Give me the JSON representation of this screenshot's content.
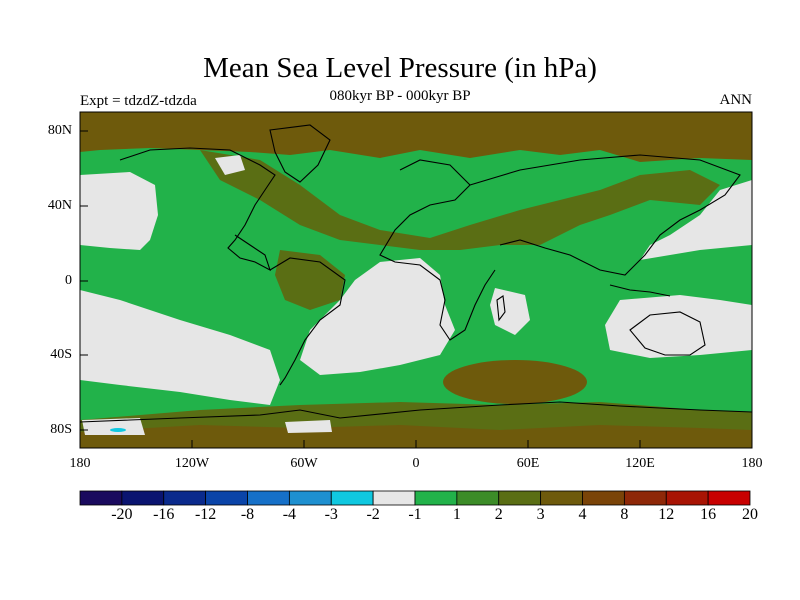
{
  "title": "Mean Sea Level Pressure (in hPa)",
  "subtitle": "080kyr BP - 000kyr BP",
  "left_label": "Expt = tdzdZ-tdzda",
  "right_label": "ANN",
  "map": {
    "lat_labels": [
      "80N",
      "40N",
      "0",
      "40S",
      "80S"
    ],
    "lon_labels": [
      "180",
      "120W",
      "60W",
      "0",
      "60E",
      "120E",
      "180"
    ]
  },
  "colorbar": {
    "colors": [
      "#1a0a5e",
      "#0a1470",
      "#0a2a8c",
      "#0a44a8",
      "#1670c8",
      "#1e90d0",
      "#10c8e0",
      "#e6e6e6",
      "#22b24a",
      "#3c8c28",
      "#5a6e14",
      "#6e5a0c",
      "#7a4408",
      "#8e2808",
      "#a81404",
      "#c80000"
    ],
    "tick_labels": [
      "-20",
      "-16",
      "-12",
      "-8",
      "-4",
      "-3",
      "-2",
      "-1",
      "1",
      "2",
      "3",
      "4",
      "8",
      "12",
      "16",
      "20"
    ]
  },
  "colors": {
    "neutral": "#e6e6e6",
    "green_light": "#22b24a",
    "green_mid": "#3c8c28",
    "olive": "#5a6e14",
    "brown": "#6e5a0c"
  }
}
